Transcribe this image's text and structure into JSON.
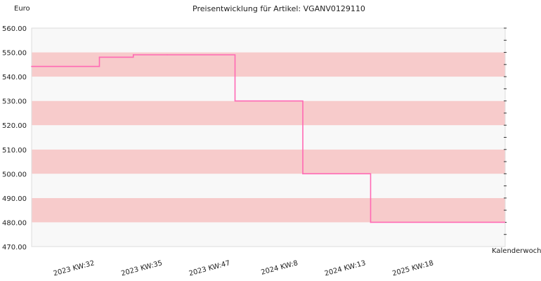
{
  "chart_data": {
    "type": "line",
    "step": true,
    "title": "Preisentwicklung für Artikel: VGANV0129110",
    "ylabel": "Euro",
    "xlabel": "Kalenderwoche",
    "ylim": [
      470,
      560
    ],
    "yticks": [
      470,
      480,
      490,
      500,
      510,
      520,
      530,
      540,
      550,
      560
    ],
    "y_tick_labels": [
      "470.00",
      "480.00",
      "490.00",
      "500.00",
      "510.00",
      "520.00",
      "530.00",
      "540.00",
      "550.00",
      "560.00"
    ],
    "x_tick_labels": [
      "2023 KW:32",
      "2023 KW:35",
      "2023 KW:47",
      "2024 KW:8",
      "2024 KW:13",
      "2025 KW:18"
    ],
    "series": [
      {
        "color": "#ff69b4",
        "points": [
          {
            "x": 0,
            "y": 544.2
          },
          {
            "x": 1,
            "y": 548.0
          },
          {
            "x": 1.5,
            "y": 549.0
          },
          {
            "x": 2,
            "y": 549.0
          },
          {
            "x": 3,
            "y": 530.0
          },
          {
            "x": 4,
            "y": 500.0
          },
          {
            "x": 5,
            "y": 480.0
          }
        ]
      }
    ],
    "band_colors": [
      "#f8f8f8",
      "#f7cbcb"
    ],
    "grid": false
  }
}
